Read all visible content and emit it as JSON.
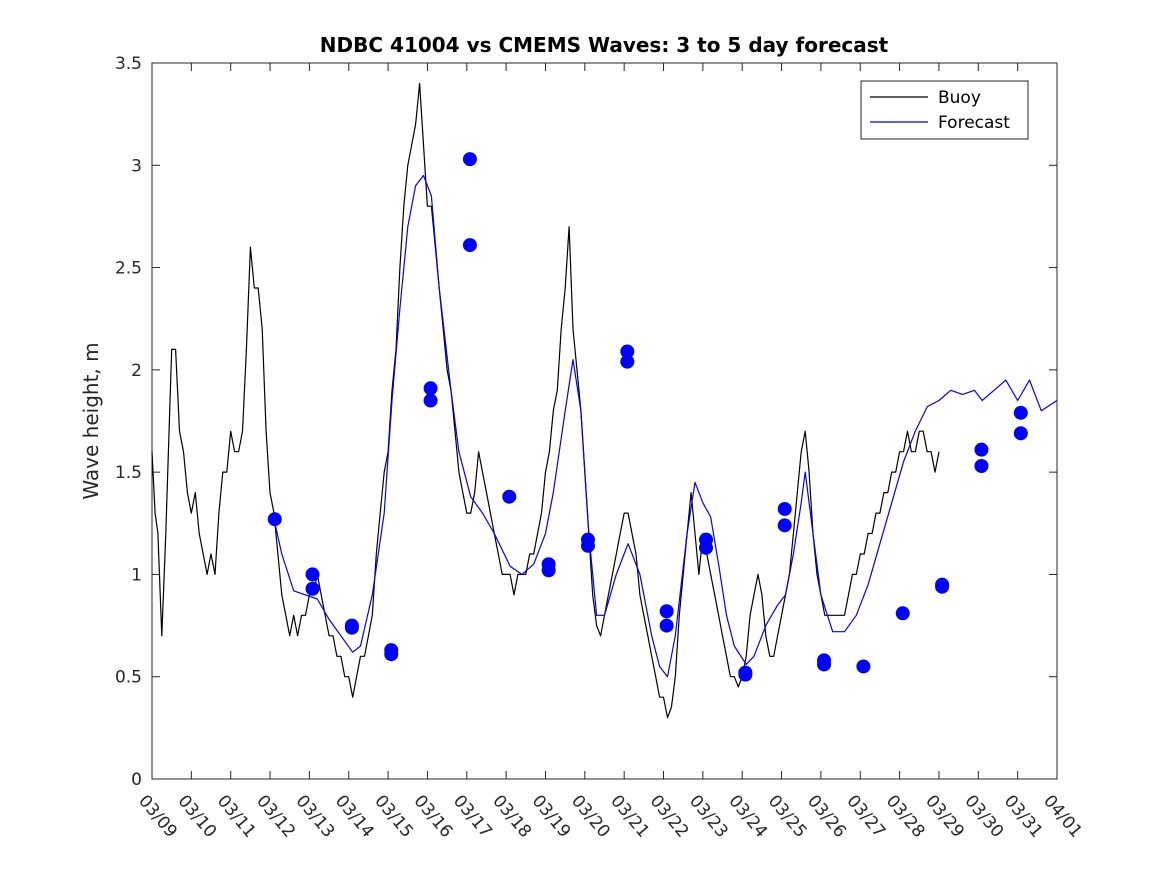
{
  "chart_data": {
    "type": "line",
    "title": "NDBC 41004 vs CMEMS Waves: 3 to 5 day forecast",
    "xlabel": "",
    "ylabel": "Wave height, m",
    "xlim": [
      "03/09",
      "04/01"
    ],
    "ylim": [
      0,
      3.5
    ],
    "x_ticks": [
      "03/09",
      "03/10",
      "03/11",
      "03/12",
      "03/13",
      "03/14",
      "03/15",
      "03/16",
      "03/17",
      "03/18",
      "03/19",
      "03/20",
      "03/21",
      "03/22",
      "03/23",
      "03/24",
      "03/25",
      "03/26",
      "03/27",
      "03/28",
      "03/29",
      "03/30",
      "03/31",
      "04/01"
    ],
    "y_ticks": [
      "0",
      "0.5",
      "1",
      "1.5",
      "2",
      "2.5",
      "3",
      "3.5"
    ],
    "legend": {
      "position": "top-right",
      "entries": [
        {
          "label": "Buoy",
          "color": "#000000"
        },
        {
          "label": "Forecast",
          "color": "#0000ff"
        }
      ]
    },
    "grid": false,
    "x_unit_note": "x values are days since 03/09 00:00",
    "series": [
      {
        "name": "Buoy",
        "color": "#000000",
        "points": [
          [
            0.0,
            1.6
          ],
          [
            0.08,
            1.3
          ],
          [
            0.15,
            1.2
          ],
          [
            0.25,
            0.7
          ],
          [
            0.35,
            1.2
          ],
          [
            0.45,
            1.8
          ],
          [
            0.5,
            2.1
          ],
          [
            0.6,
            2.1
          ],
          [
            0.7,
            1.7
          ],
          [
            0.8,
            1.6
          ],
          [
            0.9,
            1.4
          ],
          [
            1.0,
            1.3
          ],
          [
            1.1,
            1.4
          ],
          [
            1.2,
            1.2
          ],
          [
            1.3,
            1.1
          ],
          [
            1.4,
            1.0
          ],
          [
            1.5,
            1.1
          ],
          [
            1.6,
            1.0
          ],
          [
            1.7,
            1.3
          ],
          [
            1.8,
            1.5
          ],
          [
            1.9,
            1.5
          ],
          [
            2.0,
            1.7
          ],
          [
            2.1,
            1.6
          ],
          [
            2.2,
            1.6
          ],
          [
            2.3,
            1.7
          ],
          [
            2.4,
            2.1
          ],
          [
            2.5,
            2.6
          ],
          [
            2.6,
            2.4
          ],
          [
            2.7,
            2.4
          ],
          [
            2.8,
            2.2
          ],
          [
            2.9,
            1.7
          ],
          [
            3.0,
            1.4
          ],
          [
            3.1,
            1.3
          ],
          [
            3.2,
            1.1
          ],
          [
            3.3,
            0.9
          ],
          [
            3.4,
            0.8
          ],
          [
            3.5,
            0.7
          ],
          [
            3.6,
            0.8
          ],
          [
            3.7,
            0.7
          ],
          [
            3.8,
            0.8
          ],
          [
            3.9,
            0.8
          ],
          [
            4.0,
            0.9
          ],
          [
            4.1,
            0.9
          ],
          [
            4.2,
            1.0
          ],
          [
            4.3,
            0.9
          ],
          [
            4.4,
            0.8
          ],
          [
            4.5,
            0.7
          ],
          [
            4.6,
            0.7
          ],
          [
            4.7,
            0.6
          ],
          [
            4.8,
            0.6
          ],
          [
            4.9,
            0.5
          ],
          [
            5.0,
            0.5
          ],
          [
            5.1,
            0.4
          ],
          [
            5.2,
            0.5
          ],
          [
            5.3,
            0.6
          ],
          [
            5.4,
            0.6
          ],
          [
            5.5,
            0.7
          ],
          [
            5.6,
            0.8
          ],
          [
            5.7,
            1.1
          ],
          [
            5.8,
            1.3
          ],
          [
            5.9,
            1.5
          ],
          [
            6.0,
            1.6
          ],
          [
            6.1,
            1.9
          ],
          [
            6.2,
            2.1
          ],
          [
            6.3,
            2.5
          ],
          [
            6.4,
            2.8
          ],
          [
            6.5,
            3.0
          ],
          [
            6.6,
            3.1
          ],
          [
            6.7,
            3.2
          ],
          [
            6.8,
            3.4
          ],
          [
            6.9,
            3.1
          ],
          [
            7.0,
            2.8
          ],
          [
            7.1,
            2.8
          ],
          [
            7.2,
            2.6
          ],
          [
            7.3,
            2.4
          ],
          [
            7.4,
            2.2
          ],
          [
            7.5,
            2.0
          ],
          [
            7.6,
            1.9
          ],
          [
            7.7,
            1.7
          ],
          [
            7.8,
            1.5
          ],
          [
            7.9,
            1.4
          ],
          [
            8.0,
            1.3
          ],
          [
            8.1,
            1.3
          ],
          [
            8.2,
            1.4
          ],
          [
            8.3,
            1.6
          ],
          [
            8.4,
            1.5
          ],
          [
            8.5,
            1.4
          ],
          [
            8.6,
            1.3
          ],
          [
            8.7,
            1.2
          ],
          [
            8.8,
            1.1
          ],
          [
            8.9,
            1.0
          ],
          [
            9.0,
            1.0
          ],
          [
            9.1,
            1.0
          ],
          [
            9.2,
            0.9
          ],
          [
            9.3,
            1.0
          ],
          [
            9.4,
            1.0
          ],
          [
            9.5,
            1.0
          ],
          [
            9.6,
            1.1
          ],
          [
            9.7,
            1.1
          ],
          [
            9.8,
            1.2
          ],
          [
            9.9,
            1.3
          ],
          [
            10.0,
            1.5
          ],
          [
            10.1,
            1.6
          ],
          [
            10.2,
            1.8
          ],
          [
            10.3,
            1.9
          ],
          [
            10.4,
            2.2
          ],
          [
            10.5,
            2.4
          ],
          [
            10.6,
            2.7
          ],
          [
            10.7,
            2.2
          ],
          [
            10.8,
            2.0
          ],
          [
            10.9,
            1.8
          ],
          [
            11.0,
            1.5
          ],
          [
            11.1,
            1.2
          ],
          [
            11.2,
            0.9
          ],
          [
            11.3,
            0.75
          ],
          [
            11.4,
            0.7
          ],
          [
            11.5,
            0.8
          ],
          [
            11.6,
            0.9
          ],
          [
            11.7,
            1.0
          ],
          [
            11.8,
            1.1
          ],
          [
            11.9,
            1.2
          ],
          [
            12.0,
            1.3
          ],
          [
            12.1,
            1.3
          ],
          [
            12.2,
            1.2
          ],
          [
            12.3,
            1.1
          ],
          [
            12.4,
            0.9
          ],
          [
            12.5,
            0.8
          ],
          [
            12.6,
            0.7
          ],
          [
            12.7,
            0.6
          ],
          [
            12.8,
            0.5
          ],
          [
            12.9,
            0.4
          ],
          [
            13.0,
            0.4
          ],
          [
            13.1,
            0.3
          ],
          [
            13.2,
            0.35
          ],
          [
            13.3,
            0.5
          ],
          [
            13.4,
            0.8
          ],
          [
            13.5,
            1.0
          ],
          [
            13.6,
            1.2
          ],
          [
            13.7,
            1.4
          ],
          [
            13.8,
            1.2
          ],
          [
            13.9,
            1.0
          ],
          [
            14.0,
            1.2
          ],
          [
            14.1,
            1.1
          ],
          [
            14.2,
            1.0
          ],
          [
            14.3,
            0.9
          ],
          [
            14.4,
            0.8
          ],
          [
            14.5,
            0.7
          ],
          [
            14.6,
            0.6
          ],
          [
            14.7,
            0.5
          ],
          [
            14.8,
            0.5
          ],
          [
            14.9,
            0.45
          ],
          [
            15.0,
            0.5
          ],
          [
            15.1,
            0.6
          ],
          [
            15.2,
            0.8
          ],
          [
            15.3,
            0.9
          ],
          [
            15.4,
            1.0
          ],
          [
            15.5,
            0.9
          ],
          [
            15.6,
            0.7
          ],
          [
            15.7,
            0.6
          ],
          [
            15.8,
            0.6
          ],
          [
            15.9,
            0.7
          ],
          [
            16.0,
            0.8
          ],
          [
            16.1,
            0.9
          ],
          [
            16.2,
            1.0
          ],
          [
            16.3,
            1.2
          ],
          [
            16.4,
            1.4
          ],
          [
            16.5,
            1.6
          ],
          [
            16.6,
            1.7
          ],
          [
            16.7,
            1.5
          ],
          [
            16.8,
            1.2
          ],
          [
            16.9,
            1.0
          ],
          [
            17.0,
            0.9
          ],
          [
            17.1,
            0.8
          ],
          [
            17.2,
            0.8
          ],
          [
            17.3,
            0.8
          ],
          [
            17.4,
            0.8
          ],
          [
            17.5,
            0.8
          ],
          [
            17.6,
            0.8
          ],
          [
            17.7,
            0.9
          ],
          [
            17.8,
            1.0
          ],
          [
            17.9,
            1.0
          ],
          [
            18.0,
            1.1
          ],
          [
            18.1,
            1.1
          ],
          [
            18.2,
            1.2
          ],
          [
            18.3,
            1.2
          ],
          [
            18.4,
            1.3
          ],
          [
            18.5,
            1.3
          ],
          [
            18.6,
            1.4
          ],
          [
            18.7,
            1.4
          ],
          [
            18.8,
            1.5
          ],
          [
            18.9,
            1.5
          ],
          [
            19.0,
            1.6
          ],
          [
            19.1,
            1.6
          ],
          [
            19.2,
            1.7
          ],
          [
            19.3,
            1.6
          ],
          [
            19.4,
            1.6
          ],
          [
            19.5,
            1.7
          ],
          [
            19.6,
            1.7
          ],
          [
            19.7,
            1.6
          ],
          [
            19.8,
            1.6
          ],
          [
            19.9,
            1.5
          ],
          [
            20.0,
            1.6
          ]
        ]
      },
      {
        "name": "Forecast",
        "color": "#0000ff",
        "points": [
          [
            3.1,
            1.27
          ],
          [
            3.3,
            1.1
          ],
          [
            3.6,
            0.92
          ],
          [
            3.9,
            0.9
          ],
          [
            4.2,
            0.88
          ],
          [
            4.5,
            0.78
          ],
          [
            4.8,
            0.7
          ],
          [
            5.1,
            0.62
          ],
          [
            5.3,
            0.65
          ],
          [
            5.6,
            0.9
          ],
          [
            5.9,
            1.3
          ],
          [
            6.1,
            1.85
          ],
          [
            6.3,
            2.3
          ],
          [
            6.5,
            2.7
          ],
          [
            6.7,
            2.9
          ],
          [
            6.9,
            2.95
          ],
          [
            7.1,
            2.85
          ],
          [
            7.3,
            2.4
          ],
          [
            7.6,
            1.9
          ],
          [
            7.8,
            1.6
          ],
          [
            8.1,
            1.38
          ],
          [
            8.4,
            1.3
          ],
          [
            8.7,
            1.2
          ],
          [
            9.1,
            1.04
          ],
          [
            9.4,
            1.0
          ],
          [
            9.7,
            1.05
          ],
          [
            10.0,
            1.2
          ],
          [
            10.2,
            1.4
          ],
          [
            10.5,
            1.8
          ],
          [
            10.7,
            2.05
          ],
          [
            10.9,
            1.8
          ],
          [
            11.1,
            1.2
          ],
          [
            11.3,
            0.8
          ],
          [
            11.5,
            0.8
          ],
          [
            11.8,
            1.0
          ],
          [
            12.1,
            1.15
          ],
          [
            12.4,
            1.0
          ],
          [
            12.7,
            0.7
          ],
          [
            12.9,
            0.55
          ],
          [
            13.1,
            0.5
          ],
          [
            13.3,
            0.7
          ],
          [
            13.6,
            1.2
          ],
          [
            13.8,
            1.45
          ],
          [
            14.0,
            1.35
          ],
          [
            14.2,
            1.28
          ],
          [
            14.4,
            1.05
          ],
          [
            14.6,
            0.8
          ],
          [
            14.8,
            0.65
          ],
          [
            15.1,
            0.56
          ],
          [
            15.3,
            0.6
          ],
          [
            15.6,
            0.75
          ],
          [
            15.9,
            0.85
          ],
          [
            16.1,
            0.9
          ],
          [
            16.3,
            1.1
          ],
          [
            16.5,
            1.35
          ],
          [
            16.6,
            1.5
          ],
          [
            16.8,
            1.2
          ],
          [
            17.0,
            0.9
          ],
          [
            17.3,
            0.72
          ],
          [
            17.6,
            0.72
          ],
          [
            17.9,
            0.8
          ],
          [
            18.2,
            0.95
          ],
          [
            18.5,
            1.15
          ],
          [
            18.8,
            1.35
          ],
          [
            19.1,
            1.55
          ],
          [
            19.4,
            1.7
          ],
          [
            19.7,
            1.82
          ],
          [
            20.0,
            1.85
          ],
          [
            20.3,
            1.9
          ],
          [
            20.6,
            1.88
          ],
          [
            20.9,
            1.9
          ],
          [
            21.1,
            1.85
          ],
          [
            21.4,
            1.9
          ],
          [
            21.7,
            1.95
          ],
          [
            22.0,
            1.85
          ],
          [
            22.3,
            1.95
          ],
          [
            22.6,
            1.8
          ],
          [
            23.0,
            1.85
          ]
        ]
      }
    ],
    "markers": [
      {
        "x": 3.12,
        "y": 1.27
      },
      {
        "x": 4.08,
        "y": 1.0
      },
      {
        "x": 4.08,
        "y": 0.93
      },
      {
        "x": 5.08,
        "y": 0.75
      },
      {
        "x": 5.08,
        "y": 0.74
      },
      {
        "x": 6.08,
        "y": 0.63
      },
      {
        "x": 6.08,
        "y": 0.61
      },
      {
        "x": 7.08,
        "y": 1.91
      },
      {
        "x": 7.08,
        "y": 1.85
      },
      {
        "x": 8.08,
        "y": 3.03
      },
      {
        "x": 8.08,
        "y": 2.61
      },
      {
        "x": 9.08,
        "y": 1.38
      },
      {
        "x": 10.08,
        "y": 1.05
      },
      {
        "x": 10.08,
        "y": 1.02
      },
      {
        "x": 11.08,
        "y": 1.17
      },
      {
        "x": 11.08,
        "y": 1.14
      },
      {
        "x": 12.08,
        "y": 2.09
      },
      {
        "x": 12.08,
        "y": 2.04
      },
      {
        "x": 13.08,
        "y": 0.82
      },
      {
        "x": 13.08,
        "y": 0.75
      },
      {
        "x": 14.08,
        "y": 1.17
      },
      {
        "x": 14.08,
        "y": 1.13
      },
      {
        "x": 15.08,
        "y": 0.52
      },
      {
        "x": 15.08,
        "y": 0.51
      },
      {
        "x": 16.08,
        "y": 1.32
      },
      {
        "x": 16.08,
        "y": 1.24
      },
      {
        "x": 17.08,
        "y": 0.58
      },
      {
        "x": 17.08,
        "y": 0.56
      },
      {
        "x": 18.08,
        "y": 0.55
      },
      {
        "x": 19.08,
        "y": 0.81
      },
      {
        "x": 20.08,
        "y": 0.95
      },
      {
        "x": 20.08,
        "y": 0.94
      },
      {
        "x": 21.08,
        "y": 1.61
      },
      {
        "x": 21.08,
        "y": 1.53
      },
      {
        "x": 22.08,
        "y": 1.79
      },
      {
        "x": 22.08,
        "y": 1.69
      }
    ]
  }
}
